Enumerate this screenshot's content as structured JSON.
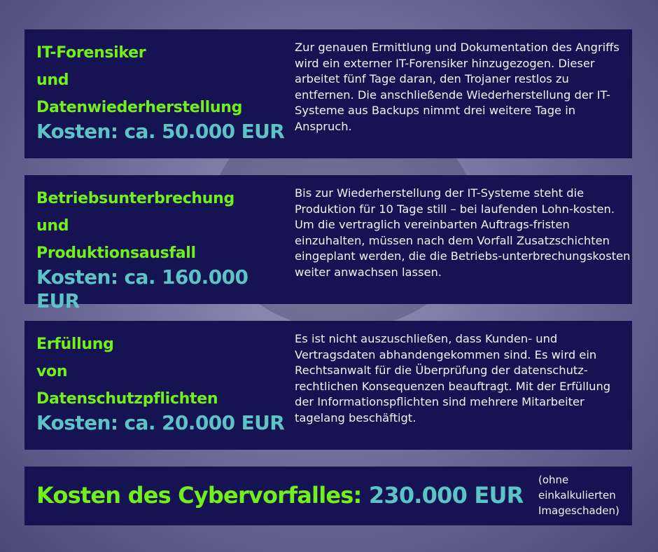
{
  "colors": {
    "box": "#151351",
    "title": "#72f01c",
    "cost": "#5cc3c6",
    "background": "#6e6d9a"
  },
  "sections": [
    {
      "title_lines": [
        "IT-Forensiker",
        "und",
        "Datenwiederherstellung"
      ],
      "cost": "Kosten: ca. 50.000 EUR",
      "description": "Zur genauen Ermittlung und Dokumentation des Angriffs wird ein externer IT-Forensiker hinzugezogen. Dieser arbeitet fünf Tage daran, den Trojaner restlos zu entfernen. Die anschließende Wiederherstellung der IT-Systeme aus Backups nimmt drei weitere Tage in Anspruch."
    },
    {
      "title_lines": [
        "Betriebsunterbrechung",
        "und",
        "Produktionsausfall"
      ],
      "cost": "Kosten: ca. 160.000 EUR",
      "description": "Bis zur Wiederherstellung der IT-Systeme steht die Produktion für 10 Tage still – bei laufenden Lohn-kosten. Um die vertraglich vereinbarten Auftrags-fristen einzuhalten, müssen nach dem Vorfall Zusatzschichten eingeplant werden, die die Betriebs-unterbrechungskosten weiter anwachsen lassen."
    },
    {
      "title_lines": [
        "Erfüllung",
        "von",
        "Datenschutzpflichten"
      ],
      "cost": "Kosten: ca. 20.000 EUR",
      "description": "Es ist nicht auszuschließen, dass Kunden- und Vertragsdaten abhandengekommen sind. Es wird ein Rechtsanwalt für die Überprüfung der datenschutz-rechtlichen Konsequenzen  beauftragt. Mit der Erfüllung der Informationspflichten sind mehrere Mitarbeiter tagelang beschäftigt."
    }
  ],
  "total": {
    "label": "Kosten des Cybervorfalles:",
    "value": "230.000 EUR",
    "note": "(ohne einkalkulierten Imageschaden)"
  }
}
